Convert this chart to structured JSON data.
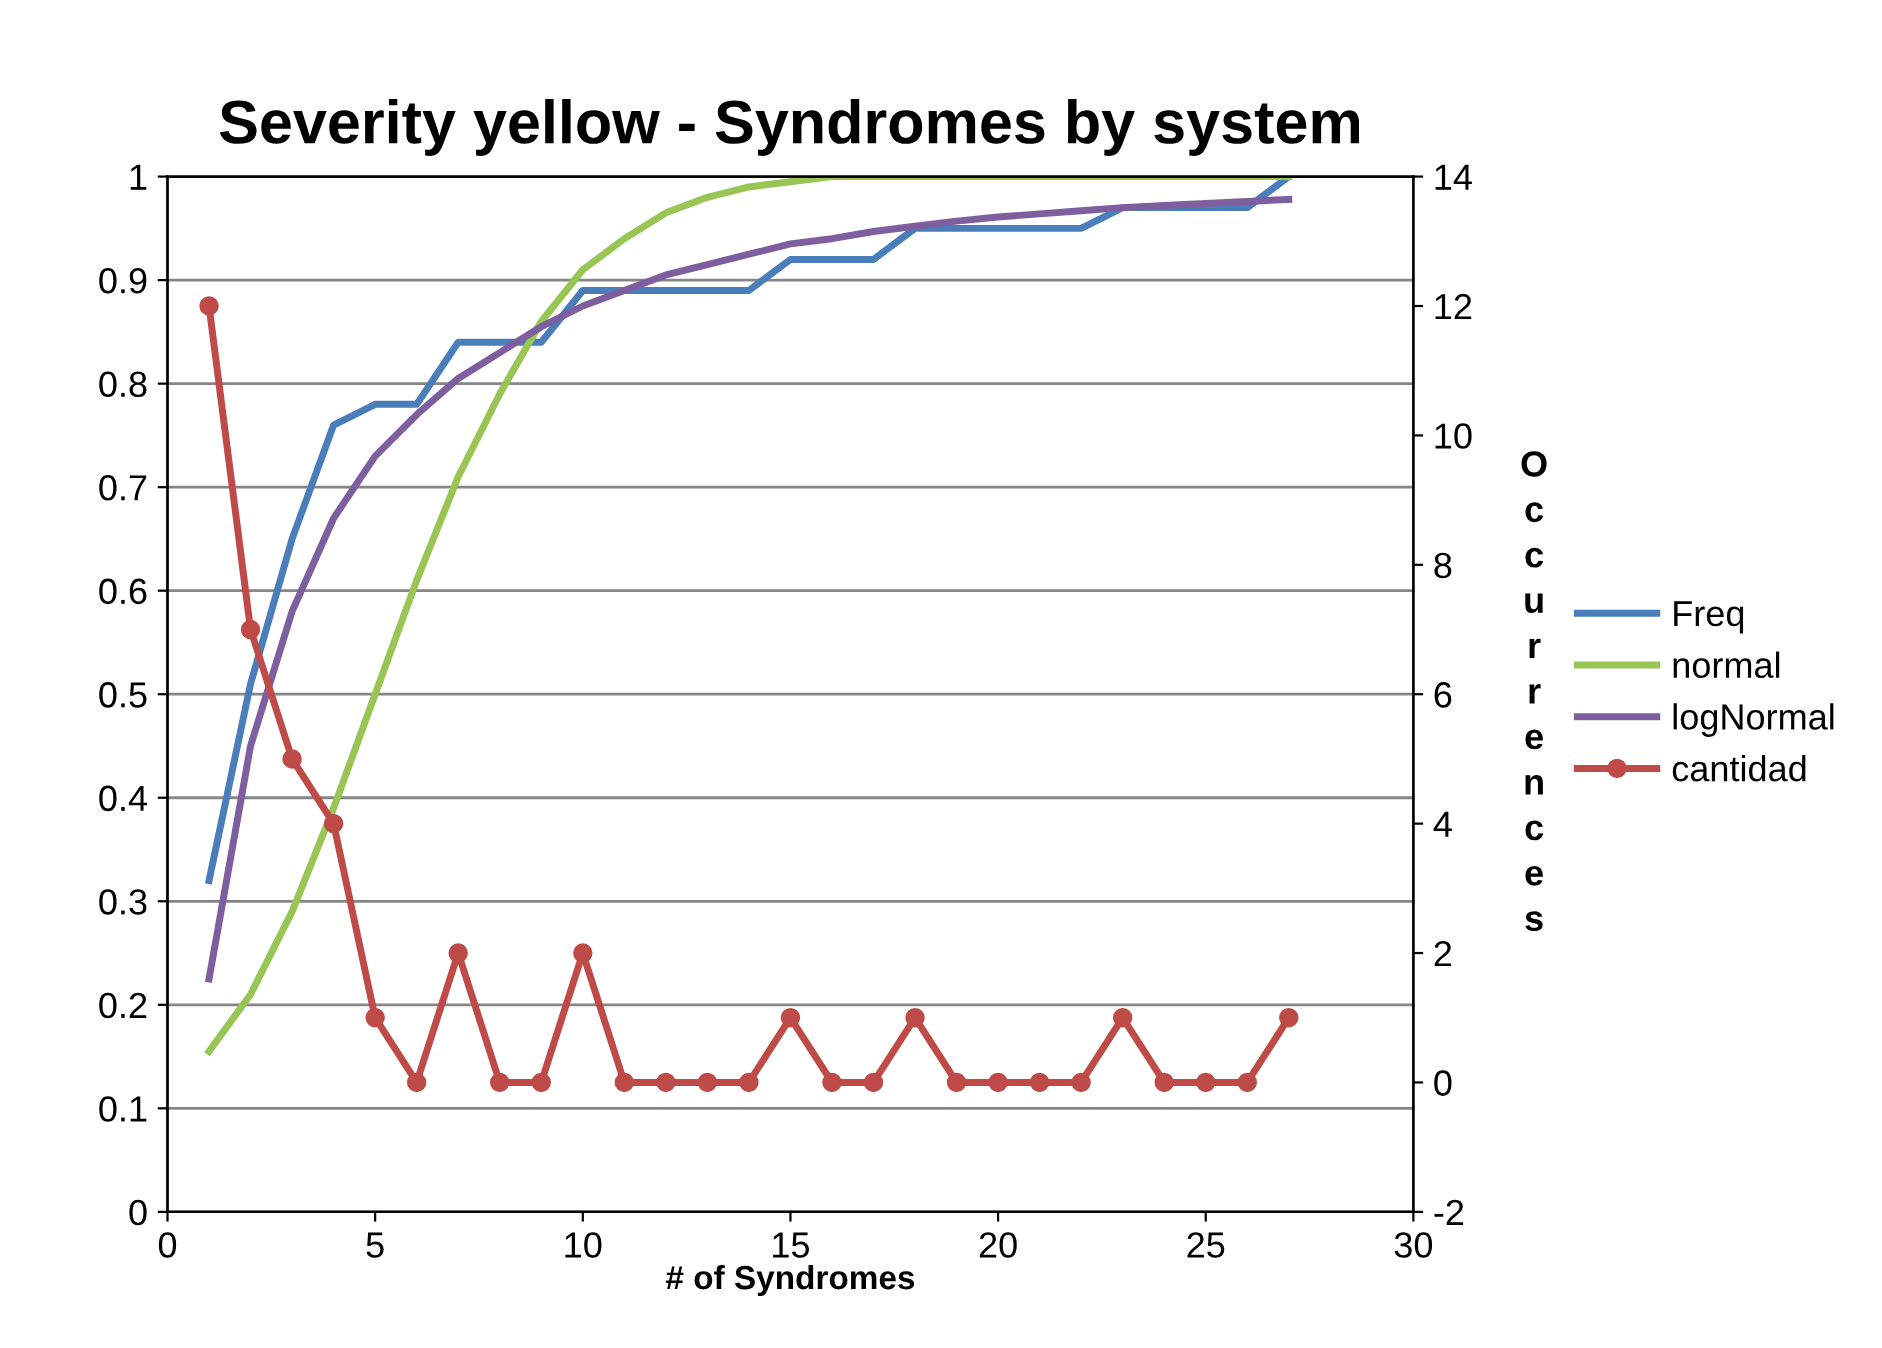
{
  "chart_data": {
    "type": "line",
    "title": "Severity yellow - Syndromes by system",
    "xlabel": "# of Syndromes",
    "y2label": "Occurrences",
    "xlim": [
      0,
      30
    ],
    "xticks": [
      0,
      5,
      10,
      15,
      20,
      25,
      30
    ],
    "ylim": [
      0,
      1
    ],
    "yticks": [
      0,
      0.1,
      0.2,
      0.3,
      0.4,
      0.5,
      0.6,
      0.7,
      0.8,
      0.9,
      1
    ],
    "y2lim": [
      -2,
      14
    ],
    "y2ticks": [
      -2,
      0,
      2,
      4,
      6,
      8,
      10,
      12,
      14
    ],
    "grid": "y",
    "legend": "right",
    "x": [
      1,
      2,
      3,
      4,
      5,
      6,
      7,
      8,
      9,
      10,
      11,
      12,
      13,
      14,
      15,
      16,
      17,
      18,
      19,
      20,
      21,
      22,
      23,
      24,
      25,
      26,
      27
    ],
    "series": [
      {
        "name": "Freq",
        "color": "#4a7ebb",
        "marker": "none",
        "values": [
          0.32,
          0.51,
          0.65,
          0.76,
          0.78,
          0.78,
          0.84,
          0.84,
          0.84,
          0.89,
          0.89,
          0.89,
          0.89,
          0.89,
          0.92,
          0.92,
          0.92,
          0.95,
          0.95,
          0.95,
          0.95,
          0.95,
          0.97,
          0.97,
          0.97,
          0.97,
          1.0
        ]
      },
      {
        "name": "normal",
        "color": "#98c554",
        "marker": "none",
        "values": [
          0.155,
          0.21,
          0.29,
          0.39,
          0.5,
          0.61,
          0.71,
          0.79,
          0.86,
          0.91,
          0.94,
          0.965,
          0.98,
          0.99,
          0.995,
          1.0,
          1.0,
          1.0,
          1.0,
          1.0,
          1.0,
          1.0,
          1.0,
          1.0,
          1.0,
          1.0,
          1.0
        ]
      },
      {
        "name": "logNormal",
        "color": "#7d5fa0",
        "marker": "none",
        "values": [
          0.225,
          0.45,
          0.58,
          0.67,
          0.73,
          0.77,
          0.805,
          0.83,
          0.855,
          0.875,
          0.89,
          0.905,
          0.915,
          0.925,
          0.935,
          0.94,
          0.947,
          0.952,
          0.957,
          0.961,
          0.964,
          0.967,
          0.97,
          0.972,
          0.974,
          0.976,
          0.978
        ]
      },
      {
        "name": "cantidad",
        "color": "#be4b48",
        "marker": "circle",
        "axis": "y2",
        "values": [
          12,
          7,
          5,
          4,
          1,
          0,
          2,
          0,
          0,
          2,
          0,
          0,
          0,
          0,
          1,
          0,
          0,
          1,
          0,
          0,
          0,
          0,
          1,
          0,
          0,
          0,
          1
        ]
      }
    ]
  }
}
